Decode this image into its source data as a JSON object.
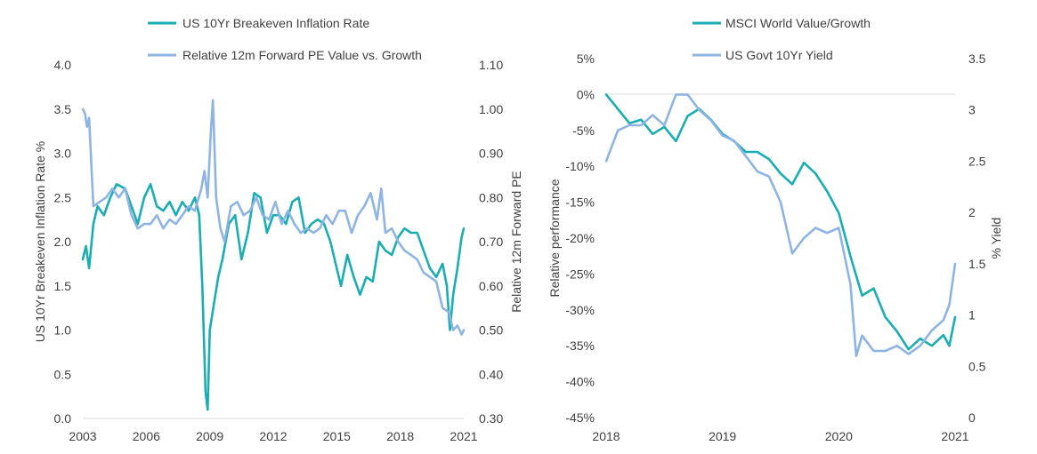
{
  "colors": {
    "teal": "#1AADB1",
    "blue": "#8EB4E3",
    "axis": "#D9D9D9",
    "text": "#404040"
  },
  "chart_data": [
    {
      "type": "line",
      "title": "",
      "x_ticks": [
        "2003",
        "2006",
        "2009",
        "2012",
        "2015",
        "2018",
        "2021"
      ],
      "x_range": [
        2003,
        2021
      ],
      "y_left": {
        "label": "US 10Yr Breakeven Inflation Rate %",
        "range": [
          0,
          4
        ],
        "ticks": [
          "0.0",
          "0.5",
          "1.0",
          "1.5",
          "2.0",
          "2.5",
          "3.0",
          "3.5",
          "4.0"
        ]
      },
      "y_right": {
        "label": "Relative 12m Forward PE",
        "range": [
          0.3,
          1.1
        ],
        "ticks": [
          "0.30",
          "0.40",
          "0.50",
          "0.60",
          "0.70",
          "0.80",
          "0.90",
          "1.00",
          "1.10"
        ]
      },
      "legend": [
        "US 10Yr Breakeven Inflation Rate",
        "Relative 12m Forward PE Value vs. Growth"
      ],
      "legend_position": "top",
      "grid": false,
      "series": [
        {
          "name": "US 10Yr Breakeven Inflation Rate",
          "axis": "left",
          "color": "#1AADB1",
          "x": [
            2003.0,
            2003.15,
            2003.3,
            2003.5,
            2003.7,
            2004.0,
            2004.3,
            2004.6,
            2005.0,
            2005.3,
            2005.6,
            2005.9,
            2006.2,
            2006.5,
            2006.8,
            2007.1,
            2007.4,
            2007.7,
            2008.0,
            2008.3,
            2008.5,
            2008.65,
            2008.8,
            2008.9,
            2009.0,
            2009.2,
            2009.4,
            2009.6,
            2009.9,
            2010.2,
            2010.5,
            2010.8,
            2011.1,
            2011.4,
            2011.7,
            2012.0,
            2012.3,
            2012.6,
            2012.9,
            2013.2,
            2013.5,
            2013.8,
            2014.1,
            2014.4,
            2014.7,
            2015.0,
            2015.2,
            2015.5,
            2015.8,
            2016.1,
            2016.4,
            2016.7,
            2017.0,
            2017.3,
            2017.6,
            2017.9,
            2018.2,
            2018.5,
            2018.8,
            2019.1,
            2019.4,
            2019.7,
            2020.0,
            2020.2,
            2020.35,
            2020.5,
            2020.7,
            2020.9,
            2021.0
          ],
          "y": [
            1.8,
            1.95,
            1.7,
            2.2,
            2.4,
            2.3,
            2.5,
            2.65,
            2.6,
            2.4,
            2.2,
            2.5,
            2.65,
            2.4,
            2.35,
            2.45,
            2.3,
            2.45,
            2.35,
            2.5,
            2.3,
            1.5,
            0.3,
            0.1,
            1.0,
            1.3,
            1.6,
            1.8,
            2.2,
            2.3,
            1.8,
            2.1,
            2.55,
            2.5,
            2.1,
            2.3,
            2.3,
            2.2,
            2.45,
            2.5,
            2.1,
            2.2,
            2.25,
            2.2,
            2.0,
            1.7,
            1.5,
            1.85,
            1.6,
            1.4,
            1.6,
            1.55,
            2.0,
            1.9,
            1.85,
            2.05,
            2.15,
            2.1,
            2.1,
            1.9,
            1.7,
            1.6,
            1.75,
            1.5,
            1.0,
            1.4,
            1.7,
            2.05,
            2.15
          ]
        },
        {
          "name": "Relative 12m Forward PE Value vs. Growth",
          "axis": "right",
          "color": "#8EB4E3",
          "x": [
            2003.0,
            2003.1,
            2003.2,
            2003.3,
            2003.5,
            2003.8,
            2004.1,
            2004.4,
            2004.7,
            2005.0,
            2005.3,
            2005.6,
            2005.9,
            2006.2,
            2006.5,
            2006.8,
            2007.1,
            2007.4,
            2007.7,
            2008.0,
            2008.3,
            2008.6,
            2008.75,
            2008.9,
            2009.05,
            2009.15,
            2009.3,
            2009.5,
            2009.7,
            2010.0,
            2010.3,
            2010.6,
            2010.9,
            2011.2,
            2011.5,
            2011.8,
            2012.1,
            2012.4,
            2012.7,
            2013.0,
            2013.3,
            2013.6,
            2013.9,
            2014.2,
            2014.5,
            2014.8,
            2015.1,
            2015.4,
            2015.7,
            2016.0,
            2016.3,
            2016.6,
            2016.9,
            2017.1,
            2017.3,
            2017.6,
            2017.9,
            2018.2,
            2018.5,
            2018.8,
            2019.1,
            2019.4,
            2019.7,
            2020.0,
            2020.3,
            2020.5,
            2020.7,
            2020.9,
            2021.0
          ],
          "y": [
            1.0,
            0.99,
            0.96,
            0.98,
            0.78,
            0.79,
            0.8,
            0.82,
            0.8,
            0.82,
            0.76,
            0.73,
            0.74,
            0.74,
            0.76,
            0.73,
            0.75,
            0.74,
            0.76,
            0.78,
            0.77,
            0.82,
            0.86,
            0.8,
            0.95,
            1.02,
            0.8,
            0.73,
            0.7,
            0.78,
            0.79,
            0.76,
            0.77,
            0.8,
            0.76,
            0.75,
            0.79,
            0.74,
            0.77,
            0.74,
            0.72,
            0.73,
            0.72,
            0.73,
            0.76,
            0.74,
            0.77,
            0.77,
            0.72,
            0.76,
            0.78,
            0.81,
            0.75,
            0.82,
            0.72,
            0.73,
            0.7,
            0.68,
            0.67,
            0.66,
            0.63,
            0.62,
            0.61,
            0.55,
            0.54,
            0.5,
            0.51,
            0.49,
            0.5
          ]
        }
      ]
    },
    {
      "type": "line",
      "title": "",
      "x_ticks": [
        "2018",
        "2019",
        "2020",
        "2021"
      ],
      "x_range": [
        2018,
        2021
      ],
      "y_left": {
        "label": "Relative performance",
        "range": [
          -45,
          5
        ],
        "ticks": [
          "-45%",
          "-40%",
          "-35%",
          "-30%",
          "-25%",
          "-20%",
          "-15%",
          "-10%",
          "-5%",
          "0%",
          "5%"
        ]
      },
      "y_right": {
        "label": "% Yield",
        "range": [
          0,
          3.5
        ],
        "ticks": [
          "0",
          "0.5",
          "1",
          "1.5",
          "2",
          "2.5",
          "3",
          "3.5"
        ]
      },
      "legend": [
        "MSCI World Value/Growth",
        "US Govt 10Yr Yield"
      ],
      "legend_position": "top",
      "grid": false,
      "series": [
        {
          "name": "MSCI World Value/Growth",
          "axis": "left",
          "color": "#1AADB1",
          "x": [
            2018.0,
            2018.1,
            2018.2,
            2018.3,
            2018.4,
            2018.5,
            2018.6,
            2018.7,
            2018.8,
            2018.9,
            2019.0,
            2019.1,
            2019.2,
            2019.3,
            2019.4,
            2019.5,
            2019.6,
            2019.7,
            2019.8,
            2019.9,
            2020.0,
            2020.1,
            2020.2,
            2020.3,
            2020.4,
            2020.5,
            2020.6,
            2020.7,
            2020.8,
            2020.9,
            2020.95,
            2021.0
          ],
          "y": [
            0.0,
            -2.0,
            -4.0,
            -3.5,
            -5.5,
            -4.5,
            -6.5,
            -3.0,
            -2.0,
            -3.5,
            -5.5,
            -6.5,
            -8.0,
            -8.0,
            -9.0,
            -11.0,
            -12.5,
            -9.5,
            -11.0,
            -13.5,
            -16.5,
            -22.5,
            -28.0,
            -27.0,
            -31.0,
            -33.0,
            -35.5,
            -34.0,
            -35.0,
            -33.5,
            -35.0,
            -31.0
          ]
        },
        {
          "name": "US Govt 10Yr Yield",
          "axis": "right",
          "color": "#8EB4E3",
          "x": [
            2018.0,
            2018.1,
            2018.2,
            2018.3,
            2018.4,
            2018.5,
            2018.6,
            2018.7,
            2018.8,
            2018.9,
            2019.0,
            2019.1,
            2019.2,
            2019.3,
            2019.4,
            2019.5,
            2019.6,
            2019.7,
            2019.8,
            2019.9,
            2020.0,
            2020.1,
            2020.15,
            2020.2,
            2020.3,
            2020.4,
            2020.5,
            2020.6,
            2020.7,
            2020.8,
            2020.9,
            2020.95,
            2021.0
          ],
          "y": [
            2.5,
            2.8,
            2.85,
            2.85,
            2.95,
            2.85,
            3.15,
            3.15,
            3.0,
            2.9,
            2.75,
            2.7,
            2.55,
            2.4,
            2.35,
            2.1,
            1.6,
            1.75,
            1.85,
            1.8,
            1.85,
            1.3,
            0.6,
            0.8,
            0.65,
            0.65,
            0.7,
            0.62,
            0.7,
            0.85,
            0.95,
            1.1,
            1.5
          ]
        }
      ]
    }
  ]
}
